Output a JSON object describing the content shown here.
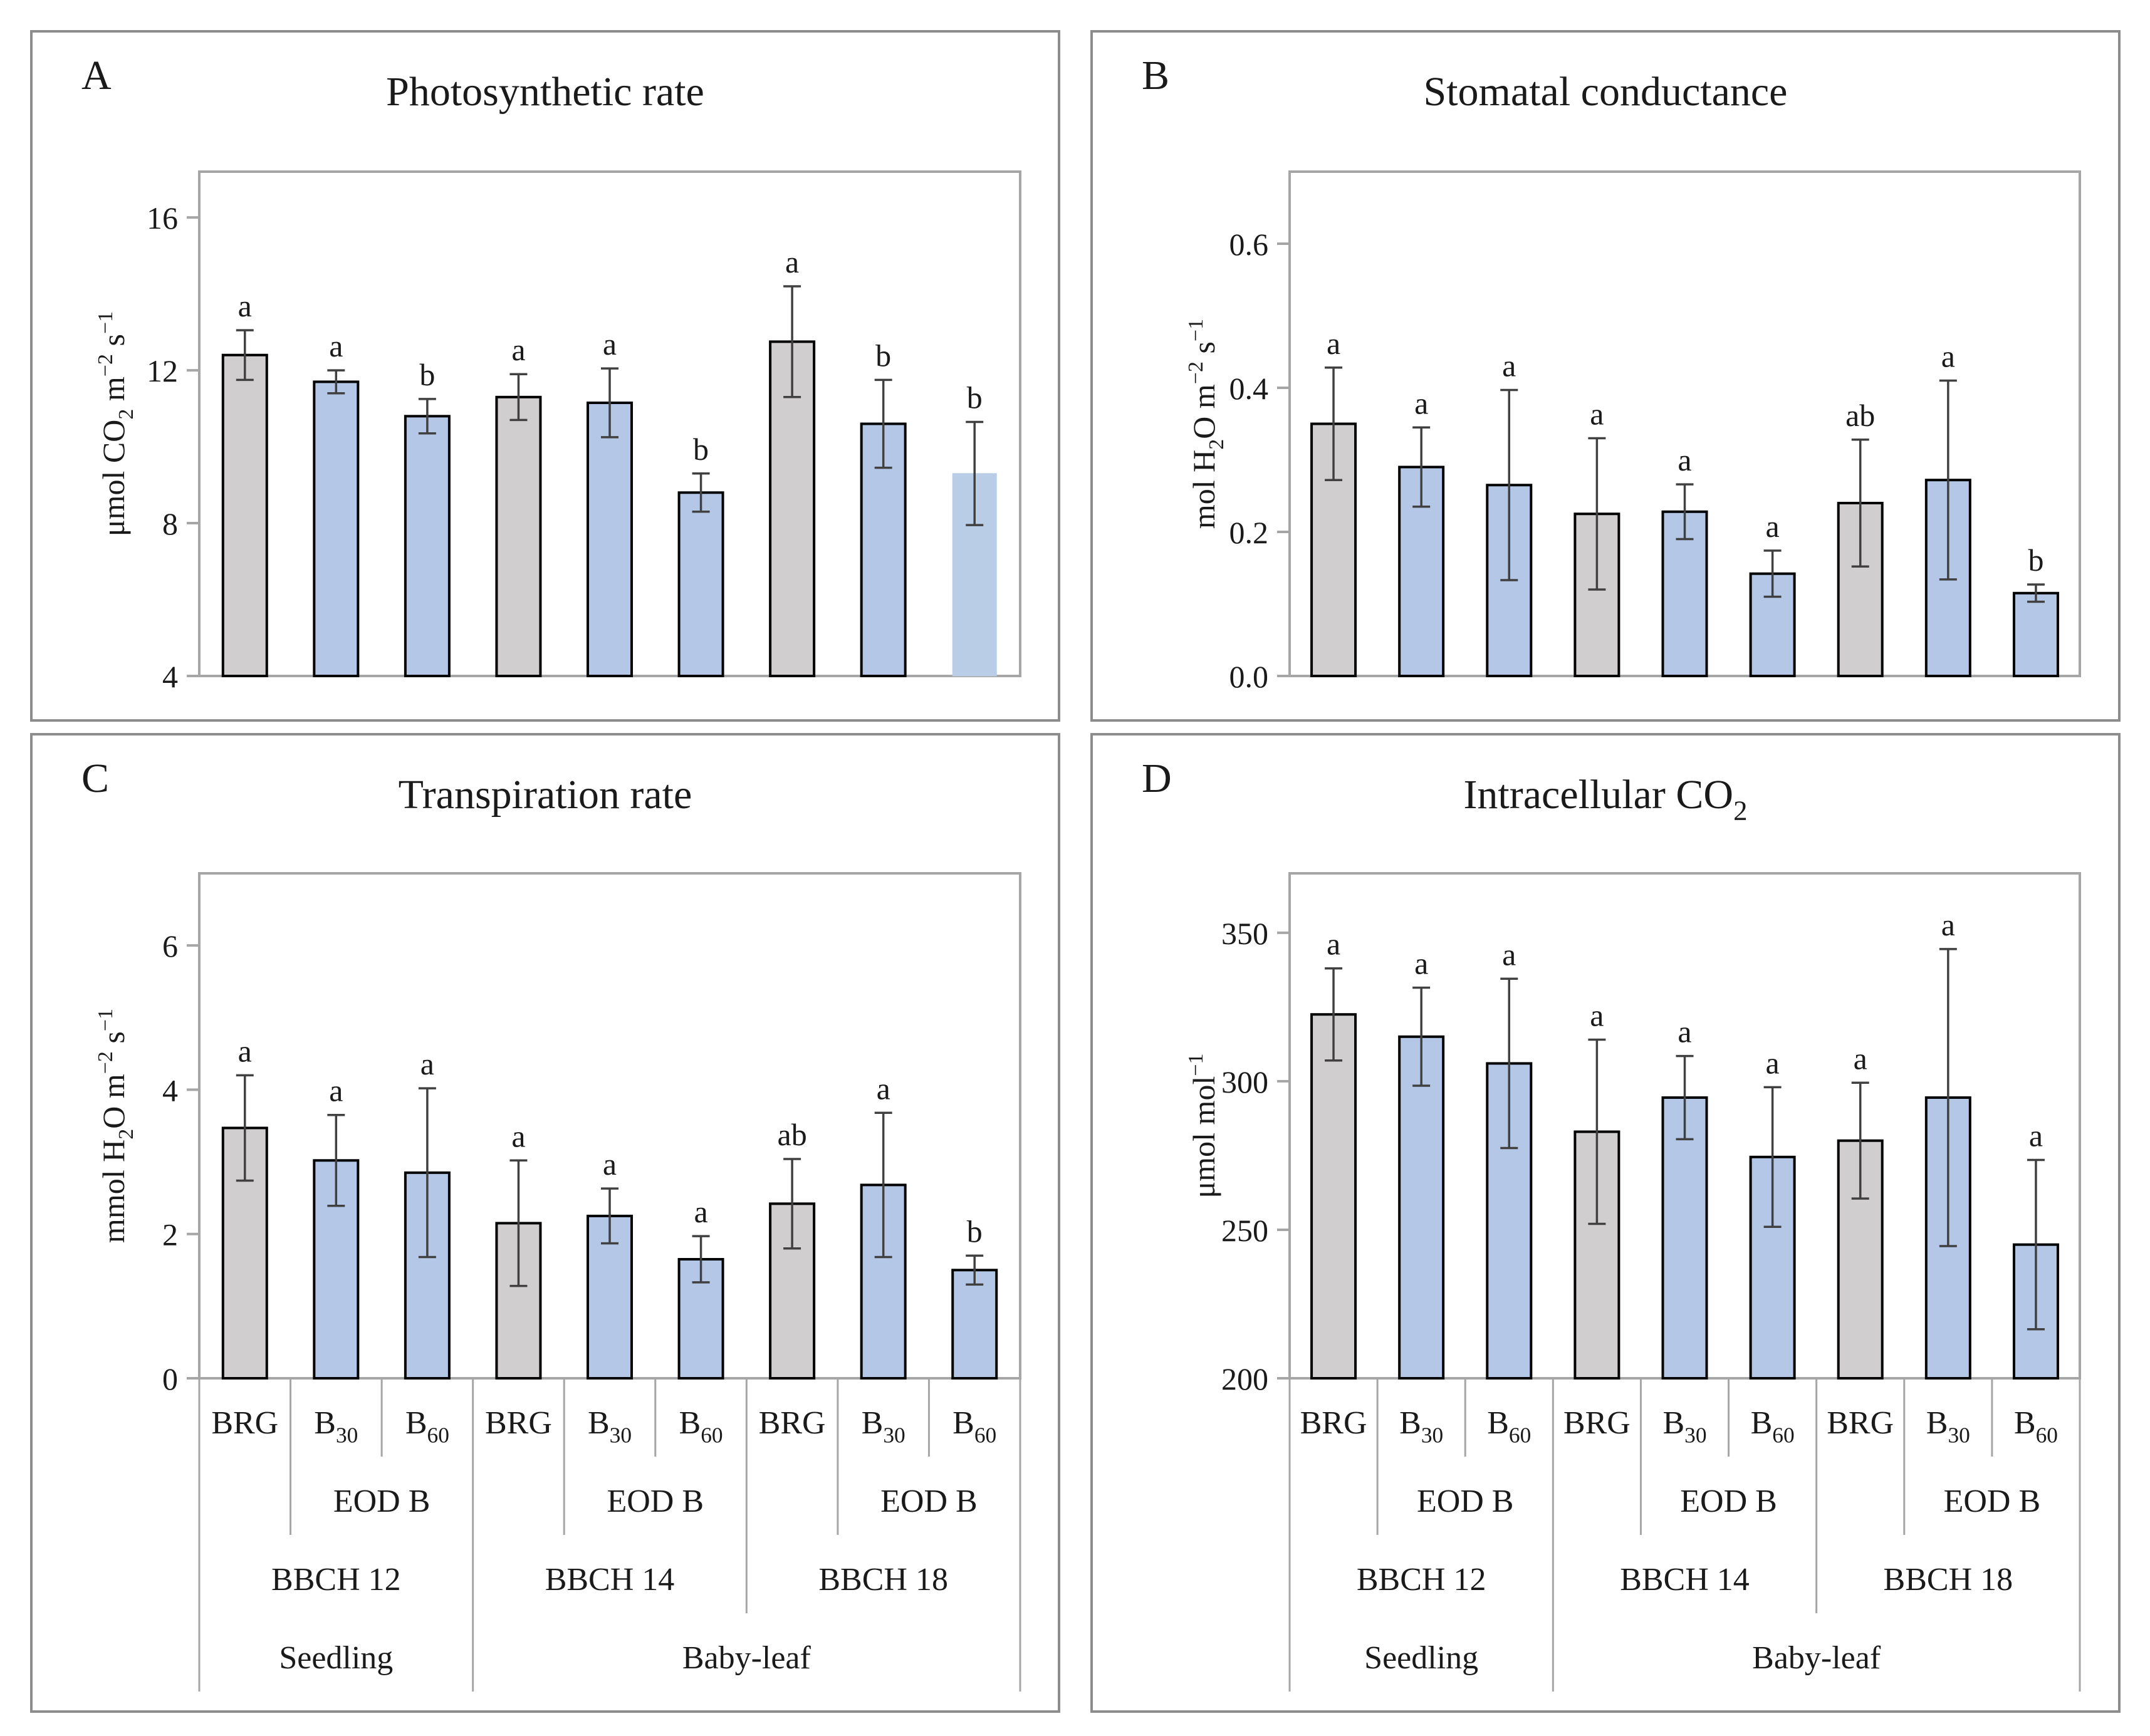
{
  "colors": {
    "grey_bar": "#d0cece",
    "blue_bar": "#b4c7e7",
    "blue_bar_light": "#b9cde6",
    "bar_edge": "#000000",
    "error_bar": "#404040",
    "axis_frame": "#a6a6a6",
    "panel_frame": "#8c8c8c"
  },
  "x_axis": {
    "categories": [
      "BRG",
      "B30",
      "B60",
      "BRG",
      "B30",
      "B60",
      "BRG",
      "B30",
      "B60"
    ],
    "category_labels": [
      {
        "main": "BRG",
        "sub": ""
      },
      {
        "main": "B",
        "sub": "30"
      },
      {
        "main": "B",
        "sub": "60"
      },
      {
        "main": "BRG",
        "sub": ""
      },
      {
        "main": "B",
        "sub": "30"
      },
      {
        "main": "B",
        "sub": "60"
      },
      {
        "main": "BRG",
        "sub": ""
      },
      {
        "main": "B",
        "sub": "30"
      },
      {
        "main": "B",
        "sub": "60"
      }
    ],
    "eod_label": "EOD B",
    "stages": [
      "BBCH 12",
      "BBCH 14",
      "BBCH 18"
    ],
    "phases": [
      "Seedling",
      "Baby-leaf"
    ]
  },
  "chart_data": [
    {
      "panel": "A",
      "type": "bar",
      "title": "Photosynthetic rate",
      "ylabel": "μmol CO2 m-2 s-1",
      "ylabel_parts": [
        {
          "t": "μmol CO",
          "s": "n"
        },
        {
          "t": "2",
          "s": "sub"
        },
        {
          "t": " m",
          "s": "n"
        },
        {
          "t": "−2",
          "s": "sup"
        },
        {
          "t": " s",
          "s": "n"
        },
        {
          "t": "−1",
          "s": "sup"
        }
      ],
      "ylim": [
        4,
        17.2
      ],
      "yticks": [
        4,
        8,
        12,
        16
      ],
      "ytick_labels": [
        "4",
        "8",
        "12",
        "16"
      ],
      "categories": [
        "BRG",
        "B30",
        "B60",
        "BRG",
        "B30",
        "B60",
        "BRG",
        "B30",
        "B60"
      ],
      "values": [
        12.4,
        11.7,
        10.8,
        11.3,
        11.15,
        8.8,
        12.75,
        10.6,
        9.3
      ],
      "errors": [
        0.65,
        0.3,
        0.45,
        0.6,
        0.9,
        0.5,
        1.45,
        1.15,
        1.35
      ],
      "colors": [
        "grey",
        "blue",
        "blue",
        "grey",
        "blue",
        "blue",
        "grey",
        "blue",
        "blue_light"
      ],
      "letters": [
        "a",
        "a",
        "b",
        "a",
        "a",
        "b",
        "a",
        "b",
        "b"
      ],
      "show_xaxis": false
    },
    {
      "panel": "B",
      "type": "bar",
      "title": "Stomatal conductance",
      "ylabel": "mol H2O m-2 s-1",
      "ylabel_parts": [
        {
          "t": "mol H",
          "s": "n"
        },
        {
          "t": "2",
          "s": "sub"
        },
        {
          "t": "O m",
          "s": "n"
        },
        {
          "t": "−2",
          "s": "sup"
        },
        {
          "t": " s",
          "s": "n"
        },
        {
          "t": "−1",
          "s": "sup"
        }
      ],
      "ylim": [
        0,
        0.7
      ],
      "yticks": [
        0,
        0.2,
        0.4,
        0.6
      ],
      "ytick_labels": [
        "0.0",
        "0.2",
        "0.4",
        "0.6"
      ],
      "categories": [
        "BRG",
        "B30",
        "B60",
        "BRG",
        "B30",
        "B60",
        "BRG",
        "B30",
        "B60"
      ],
      "values": [
        0.35,
        0.29,
        0.265,
        0.225,
        0.228,
        0.142,
        0.24,
        0.272,
        0.115
      ],
      "errors": [
        0.078,
        0.055,
        0.132,
        0.105,
        0.038,
        0.032,
        0.088,
        0.138,
        0.012
      ],
      "colors": [
        "grey",
        "blue",
        "blue",
        "grey",
        "blue",
        "blue",
        "grey",
        "blue",
        "blue"
      ],
      "letters": [
        "a",
        "a",
        "a",
        "a",
        "a",
        "a",
        "ab",
        "a",
        "b"
      ],
      "show_xaxis": false
    },
    {
      "panel": "C",
      "type": "bar",
      "title": "Transpiration rate",
      "ylabel": "mmol H2O m-2 s-1",
      "ylabel_parts": [
        {
          "t": "mmol H",
          "s": "n"
        },
        {
          "t": "2",
          "s": "sub"
        },
        {
          "t": "O m",
          "s": "n"
        },
        {
          "t": "−2",
          "s": "sup"
        },
        {
          "t": " s",
          "s": "n"
        },
        {
          "t": "−1",
          "s": "sup"
        }
      ],
      "ylim": [
        0,
        7
      ],
      "yticks": [
        0,
        2,
        4,
        6
      ],
      "ytick_labels": [
        "0",
        "2",
        "4",
        "6"
      ],
      "categories": [
        "BRG",
        "B30",
        "B60",
        "BRG",
        "B30",
        "B60",
        "BRG",
        "B30",
        "B60"
      ],
      "values": [
        3.47,
        3.02,
        2.85,
        2.15,
        2.25,
        1.65,
        2.42,
        2.68,
        1.5
      ],
      "errors": [
        0.73,
        0.63,
        1.17,
        0.87,
        0.38,
        0.32,
        0.62,
        1.0,
        0.2
      ],
      "colors": [
        "grey",
        "blue",
        "blue",
        "grey",
        "blue",
        "blue",
        "grey",
        "blue",
        "blue"
      ],
      "letters": [
        "a",
        "a",
        "a",
        "a",
        "a",
        "a",
        "ab",
        "a",
        "b"
      ],
      "show_xaxis": true
    },
    {
      "panel": "D",
      "type": "bar",
      "title": "Intracellular CO2",
      "title_parts": [
        {
          "t": "Intracellular CO",
          "s": "n"
        },
        {
          "t": "2",
          "s": "sub"
        }
      ],
      "ylabel": "μmol mol-1",
      "ylabel_parts": [
        {
          "t": "μmol mol",
          "s": "n"
        },
        {
          "t": "−1",
          "s": "sup"
        }
      ],
      "ylim": [
        200,
        370
      ],
      "yticks": [
        200,
        250,
        300,
        350
      ],
      "ytick_labels": [
        "200",
        "250",
        "300",
        "350"
      ],
      "categories": [
        "BRG",
        "B30",
        "B60",
        "BRG",
        "B30",
        "B60",
        "BRG",
        "B30",
        "B60"
      ],
      "values": [
        322.5,
        315,
        306,
        283,
        294.5,
        274.5,
        280,
        294.5,
        245
      ],
      "errors": [
        15.5,
        16.5,
        28.5,
        31,
        14,
        23.5,
        19.5,
        50,
        28.5
      ],
      "colors": [
        "grey",
        "blue",
        "blue",
        "grey",
        "blue",
        "blue",
        "grey",
        "blue",
        "blue"
      ],
      "letters": [
        "a",
        "a",
        "a",
        "a",
        "a",
        "a",
        "a",
        "a",
        "a"
      ],
      "show_xaxis": true
    }
  ]
}
